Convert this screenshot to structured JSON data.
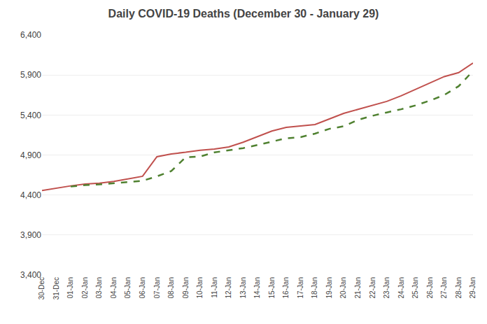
{
  "chart_data": {
    "type": "line",
    "title": "Daily COVID-19 Deaths (December 30 - January 29)",
    "categories": [
      "30-Dec",
      "31-Dec",
      "01-Jan",
      "02-Jan",
      "03-Jan",
      "04-Jan",
      "05-Jan",
      "06-Jan",
      "07-Jan",
      "08-Jan",
      "09-Jan",
      "10-Jan",
      "11-Jan",
      "12-Jan",
      "13-Jan",
      "14-Jan",
      "15-Jan",
      "16-Jan",
      "17-Jan",
      "18-Jan",
      "19-Jan",
      "20-Jan",
      "21-Jan",
      "22-Jan",
      "23-Jan",
      "24-Jan",
      "25-Jan",
      "26-Jan",
      "27-Jan",
      "28-Jan",
      "29-Jan"
    ],
    "series": [
      {
        "color": "#C0504D",
        "line_style": "solid",
        "values": [
          4457,
          4488,
          4514,
          4536,
          4549,
          4569,
          4601,
          4634,
          4879,
          4914,
          4934,
          4960,
          4974,
          5000,
          5060,
          5130,
          5200,
          5245,
          5262,
          5280,
          5350,
          5420,
          5470,
          5520,
          5570,
          5640,
          5720,
          5800,
          5880,
          5930,
          6050
        ]
      },
      {
        "color": "#4F8130",
        "line_style": "dashed",
        "values": [
          null,
          null,
          4506,
          4524,
          4533,
          4549,
          4568,
          4578,
          4633,
          4699,
          4872,
          4880,
          4932,
          4956,
          4986,
          5025,
          5065,
          5109,
          5124,
          5167,
          5227,
          5259,
          5340,
          5390,
          5432,
          5472,
          5520,
          5580,
          5650,
          5760,
          5950
        ]
      }
    ],
    "ylim": [
      3400,
      6400
    ],
    "yticks": [
      {
        "value": 3400,
        "label": "3,400"
      },
      {
        "value": 3900,
        "label": "3,900"
      },
      {
        "value": 4400,
        "label": "4,400"
      },
      {
        "value": 4900,
        "label": "4,900"
      },
      {
        "value": 5400,
        "label": "5,400"
      },
      {
        "value": 5900,
        "label": "5,900"
      },
      {
        "value": 6400,
        "label": "6,400"
      }
    ],
    "grid": true
  }
}
